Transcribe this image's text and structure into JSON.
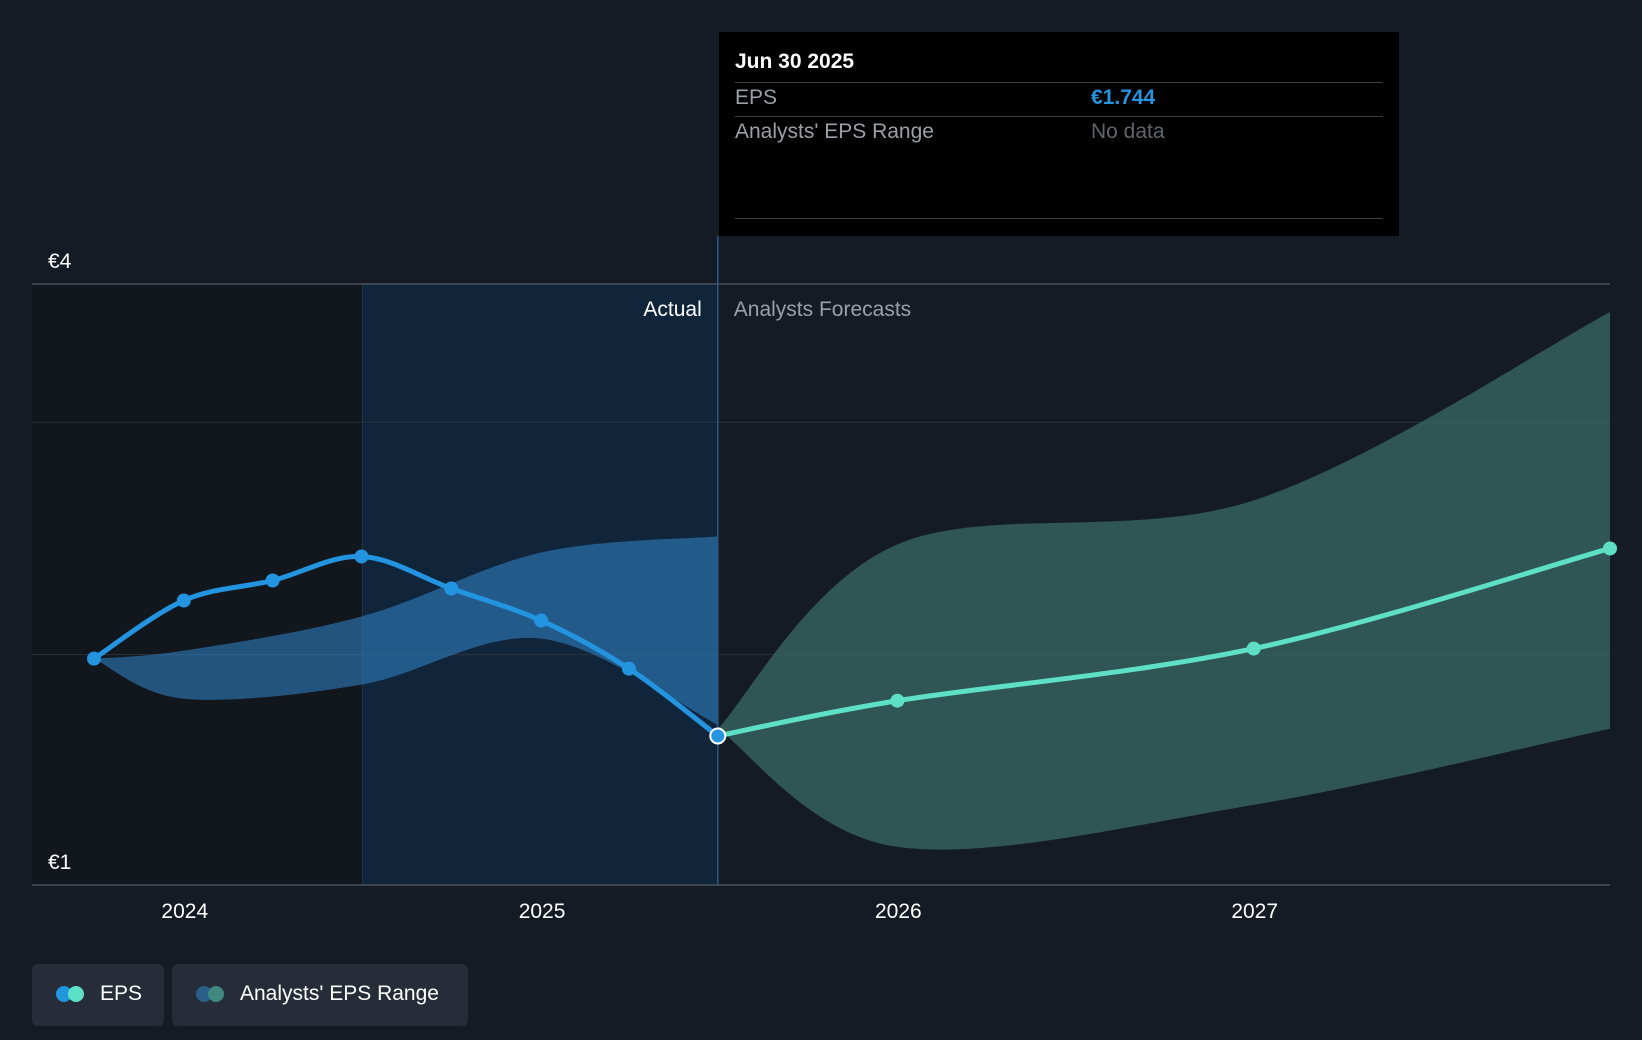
{
  "chart_data": {
    "type": "line",
    "x_range": [
      "2023-09-30",
      "2027-12-31"
    ],
    "ylim": [
      1,
      4
    ],
    "y_ticks": [
      {
        "value": 4,
        "label": "€4"
      },
      {
        "value": 1,
        "label": "€1"
      }
    ],
    "gridlines": [
      4,
      3.31,
      2.15
    ],
    "x_ticks": [
      {
        "label": "2024",
        "date": "2024-01-01"
      },
      {
        "label": "2025",
        "date": "2025-01-01"
      },
      {
        "label": "2026",
        "date": "2026-01-01"
      },
      {
        "label": "2027",
        "date": "2027-01-01"
      }
    ],
    "divider_date": "2025-06-30",
    "highlight_start": "2024-07-01",
    "section_labels": {
      "actual": "Actual",
      "forecast": "Analysts Forecasts"
    },
    "series": [
      {
        "name": "EPS",
        "role": "actual",
        "color": "#2394df",
        "points": [
          {
            "date": "2023-09-30",
            "value": 2.13
          },
          {
            "date": "2023-12-31",
            "value": 2.42
          },
          {
            "date": "2024-03-31",
            "value": 2.52
          },
          {
            "date": "2024-06-30",
            "value": 2.64
          },
          {
            "date": "2024-09-30",
            "value": 2.48
          },
          {
            "date": "2024-12-31",
            "value": 2.32
          },
          {
            "date": "2025-03-31",
            "value": 2.08
          },
          {
            "date": "2025-06-30",
            "value": 1.744
          }
        ]
      },
      {
        "name": "EPS",
        "role": "forecast",
        "color": "#5de0c6",
        "points": [
          {
            "date": "2025-06-30",
            "value": 1.744
          },
          {
            "date": "2025-12-31",
            "value": 1.92
          },
          {
            "date": "2026-12-31",
            "value": 2.18
          },
          {
            "date": "2027-12-31",
            "value": 2.68
          }
        ]
      }
    ],
    "ranges": [
      {
        "name": "Analysts' EPS Range",
        "role": "actual",
        "color": "#2e7fc0",
        "points": [
          {
            "date": "2023-09-30",
            "low": 2.13,
            "high": 2.13
          },
          {
            "date": "2023-12-31",
            "low": 1.93,
            "high": 2.17
          },
          {
            "date": "2024-06-30",
            "low": 2.0,
            "high": 2.34
          },
          {
            "date": "2024-12-31",
            "low": 2.23,
            "high": 2.66
          },
          {
            "date": "2025-06-30",
            "low": 1.8,
            "high": 2.74
          }
        ]
      },
      {
        "name": "Analysts' EPS Range",
        "role": "forecast",
        "color": "#3a6e6a",
        "points": [
          {
            "date": "2025-06-30",
            "low": 1.78,
            "high": 1.78
          },
          {
            "date": "2025-12-31",
            "low": 1.19,
            "high": 2.7
          },
          {
            "date": "2026-12-31",
            "low": 1.4,
            "high": 2.92
          },
          {
            "date": "2027-12-31",
            "low": 1.78,
            "high": 3.86
          }
        ]
      }
    ]
  },
  "tooltip": {
    "date": "Jun 30 2025",
    "eps_label": "EPS",
    "eps_value": "€1.744",
    "range_label": "Analysts' EPS Range",
    "range_value": "No data"
  },
  "legend": {
    "items": [
      {
        "label": "EPS",
        "colors": [
          "#2394df",
          "#5de0c6"
        ]
      },
      {
        "label": "Analysts' EPS Range",
        "colors": [
          "#2a5f8a",
          "#3f8a80"
        ]
      }
    ]
  }
}
